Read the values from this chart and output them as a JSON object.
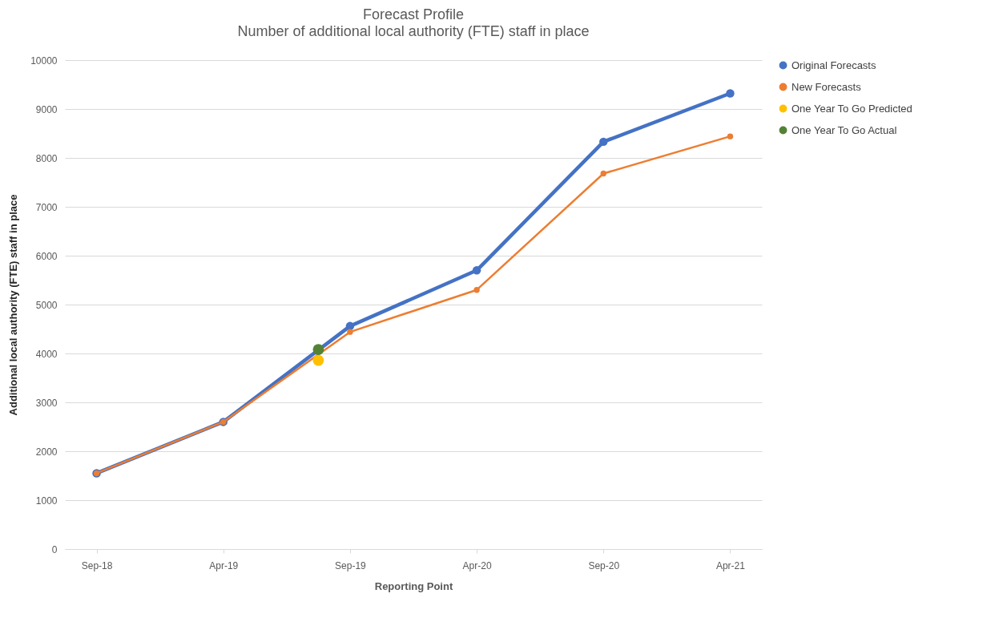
{
  "chart_data": {
    "type": "line",
    "title": "Forecast Profile",
    "subtitle": "Number of additional local authority (FTE) staff in place",
    "xlabel": "Reporting Point",
    "ylabel": "Additional local authority (FTE) staff in place",
    "categories": [
      "Sep-18",
      null,
      null,
      null,
      "Apr-19",
      null,
      null,
      null,
      "Sep-19",
      null,
      null,
      null,
      "Apr-20",
      null,
      null,
      null,
      "Sep-20",
      null,
      null,
      null,
      "Apr-21"
    ],
    "ylim": [
      0,
      10000
    ],
    "yticks": [
      0,
      1000,
      2000,
      3000,
      4000,
      5000,
      6000,
      7000,
      8000,
      9000,
      10000
    ],
    "grid": "y",
    "legend": "right",
    "marker": "circle",
    "series": [
      {
        "name": "Original Forecasts",
        "type": "line",
        "color": "#4472c4",
        "x": [
          "Sep-18",
          "Apr-19",
          "Sep-19",
          "Apr-20",
          "Sep-20",
          "Apr-21"
        ],
        "values": [
          1550,
          2600,
          4560,
          5700,
          8330,
          9320
        ]
      },
      {
        "name": "New Forecasts",
        "color": "#ed7d31",
        "x": [
          "Sep-18",
          "Apr-19",
          "Sep-19",
          "Apr-20",
          "Sep-20",
          "Apr-21"
        ],
        "values": [
          1550,
          2600,
          4440,
          5300,
          7680,
          8440
        ]
      },
      {
        "name": "One Year To Go Predicted",
        "type": "scatter",
        "color": "#ffc000",
        "values": [
          null,
          null,
          null,
          null,
          null,
          null,
          null,
          3860,
          null,
          null,
          null,
          null,
          null,
          null,
          null,
          null,
          null,
          null,
          null,
          null,
          null
        ]
      },
      {
        "name": "One Year To Go Actual",
        "type": "scatter",
        "color": "#548235",
        "values": [
          null,
          null,
          null,
          null,
          null,
          null,
          null,
          4080,
          null,
          null,
          null,
          null,
          null,
          null,
          null,
          null,
          null,
          null,
          null,
          null,
          null
        ]
      }
    ]
  }
}
